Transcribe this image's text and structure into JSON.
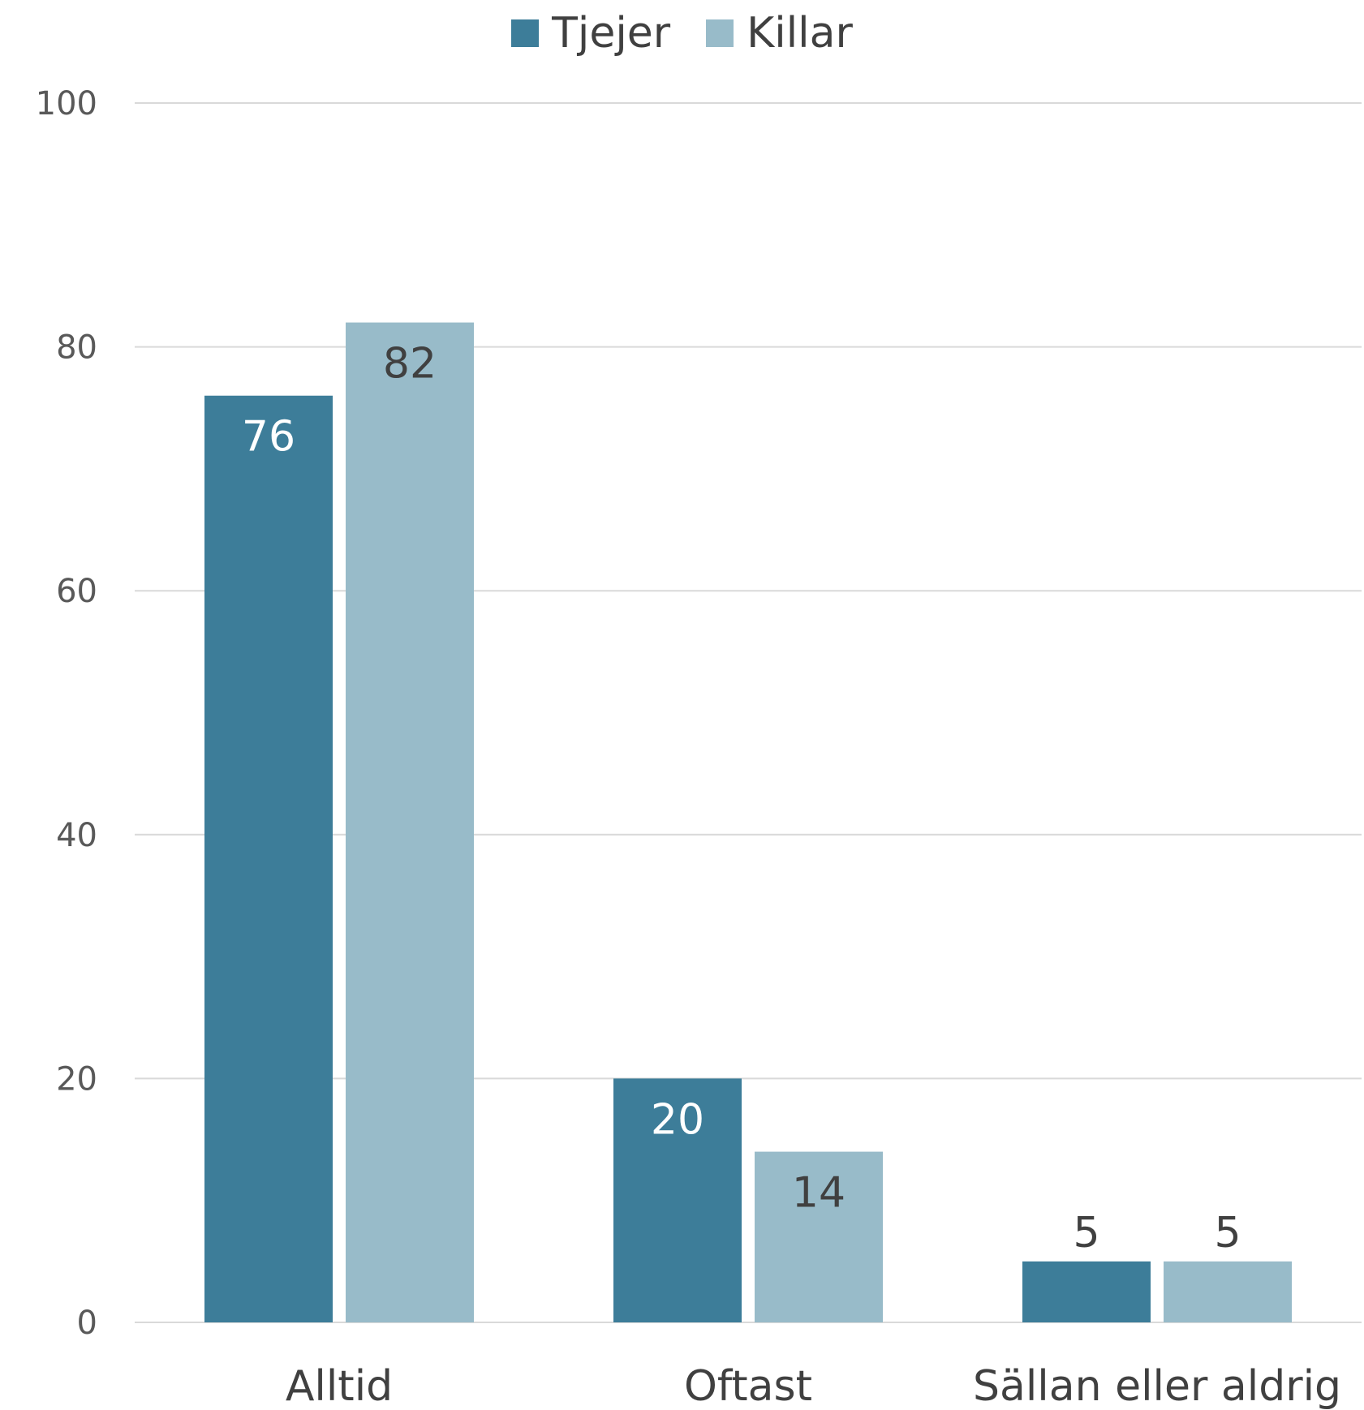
{
  "chart_data": {
    "type": "bar",
    "categories": [
      "Alltid",
      "Oftast",
      "Sällan eller aldrig"
    ],
    "series": [
      {
        "name": "Tjejer",
        "values": [
          76,
          20,
          5
        ],
        "color": "#3d7d99"
      },
      {
        "name": "Killar",
        "values": [
          82,
          14,
          5
        ],
        "color": "#98bbc9"
      }
    ],
    "data_labels": [
      [
        "76",
        "20",
        "5"
      ],
      [
        "82",
        "14",
        "5"
      ]
    ],
    "label_colors": {
      "inside_dark": "#ffffff",
      "inside_light": "#404040",
      "outside": "#404040"
    },
    "ylim": [
      0,
      100
    ],
    "yticks": [
      "0",
      "20",
      "40",
      "60",
      "80",
      "100"
    ],
    "ytick_values": [
      0,
      20,
      40,
      60,
      80,
      100
    ],
    "grid": true,
    "legend_position": "top-center",
    "title": "",
    "xlabel": "",
    "ylabel": ""
  }
}
